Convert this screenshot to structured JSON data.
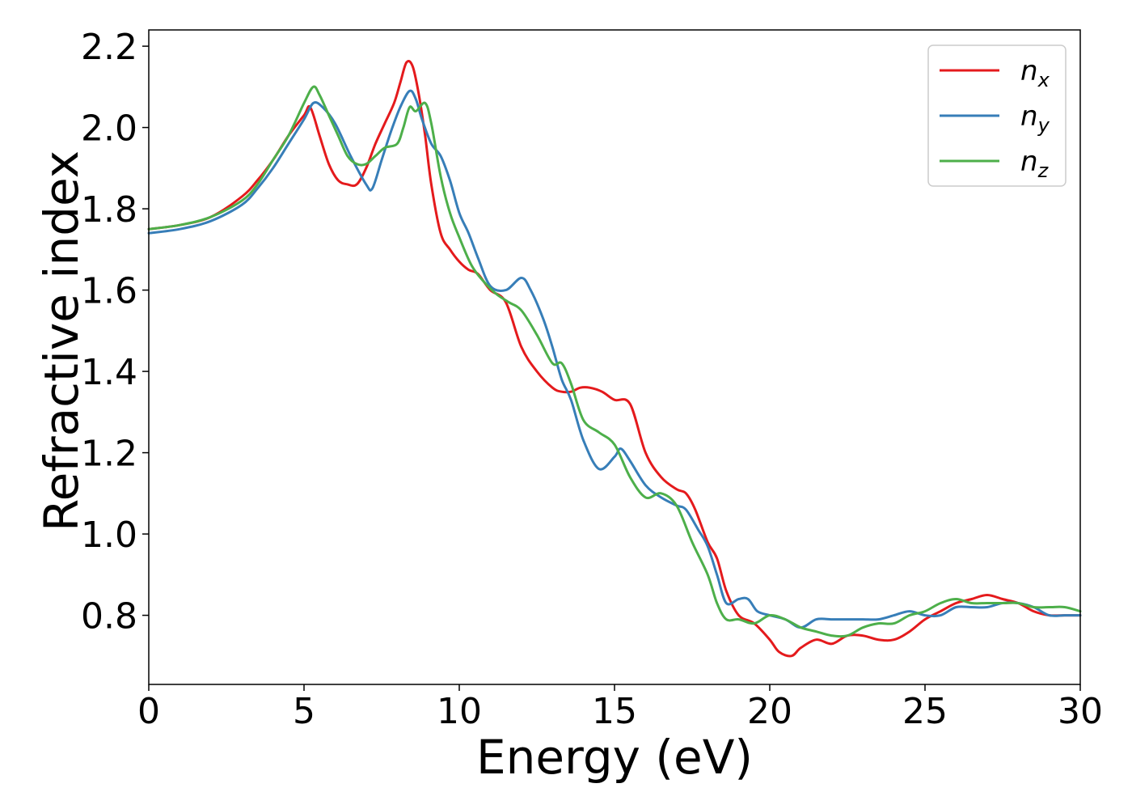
{
  "chart_data": {
    "type": "line",
    "title": "",
    "xlabel": "Energy (eV)",
    "ylabel": "Refractive index",
    "xlim": [
      0,
      30
    ],
    "ylim": [
      0.63,
      2.24
    ],
    "xticks": [
      0,
      5,
      10,
      15,
      20,
      25,
      30
    ],
    "yticks": [
      0.8,
      1.0,
      1.2,
      1.4,
      1.6,
      1.8,
      2.0,
      2.2
    ],
    "xtick_labels": [
      "0",
      "5",
      "10",
      "15",
      "20",
      "25",
      "30"
    ],
    "ytick_labels": [
      "0.8",
      "1.0",
      "1.2",
      "1.4",
      "1.6",
      "1.8",
      "2.0",
      "2.2"
    ],
    "grid": false,
    "legend_position": "top-right",
    "series": [
      {
        "name": "n",
        "sub": "x",
        "color": "#e41a1c",
        "x": [
          0,
          1,
          2,
          3,
          3.5,
          4,
          4.5,
          5,
          5.2,
          5.5,
          5.8,
          6.1,
          6.4,
          6.7,
          7,
          7.3,
          7.6,
          7.9,
          8.1,
          8.3,
          8.5,
          8.7,
          8.9,
          9.1,
          9.4,
          9.7,
          10,
          10.3,
          10.6,
          11,
          11.5,
          12,
          12.5,
          13,
          13.3,
          13.6,
          13.9,
          14.2,
          14.6,
          15,
          15.5,
          16,
          16.5,
          17,
          17.3,
          17.6,
          18,
          18.3,
          18.6,
          19,
          19.5,
          20,
          20.3,
          20.7,
          21,
          21.5,
          22,
          22.5,
          23,
          23.5,
          24,
          24.5,
          25,
          25.5,
          26,
          26.5,
          27,
          27.5,
          28,
          28.5,
          29,
          29.5,
          30
        ],
        "y": [
          1.75,
          1.76,
          1.78,
          1.83,
          1.87,
          1.92,
          1.98,
          2.03,
          2.05,
          1.98,
          1.91,
          1.87,
          1.86,
          1.86,
          1.9,
          1.96,
          2.01,
          2.06,
          2.11,
          2.16,
          2.15,
          2.08,
          1.98,
          1.86,
          1.74,
          1.7,
          1.67,
          1.65,
          1.64,
          1.6,
          1.57,
          1.46,
          1.4,
          1.36,
          1.35,
          1.35,
          1.36,
          1.36,
          1.35,
          1.33,
          1.32,
          1.2,
          1.14,
          1.11,
          1.1,
          1.06,
          0.98,
          0.94,
          0.86,
          0.8,
          0.78,
          0.74,
          0.71,
          0.7,
          0.72,
          0.74,
          0.73,
          0.75,
          0.75,
          0.74,
          0.74,
          0.76,
          0.79,
          0.81,
          0.83,
          0.84,
          0.85,
          0.84,
          0.83,
          0.81,
          0.8,
          0.8,
          0.8
        ]
      },
      {
        "name": "n",
        "sub": "y",
        "color": "#377eb8",
        "x": [
          0,
          1,
          2,
          3,
          3.5,
          4,
          4.5,
          5,
          5.3,
          5.6,
          6,
          6.5,
          7,
          7.2,
          7.5,
          7.8,
          8.1,
          8.4,
          8.6,
          8.8,
          9.1,
          9.4,
          9.7,
          10,
          10.3,
          10.6,
          11,
          11.5,
          12,
          12.3,
          12.7,
          13,
          13.3,
          13.6,
          14,
          14.5,
          15,
          15.2,
          15.5,
          16,
          16.5,
          17,
          17.3,
          17.7,
          18,
          18.3,
          18.6,
          19,
          19.3,
          19.6,
          20,
          20.5,
          21,
          21.5,
          22,
          22.5,
          23,
          23.5,
          24,
          24.5,
          25,
          25.5,
          26,
          26.5,
          27,
          27.5,
          28,
          28.5,
          29,
          29.5,
          30
        ],
        "y": [
          1.74,
          1.75,
          1.77,
          1.81,
          1.85,
          1.9,
          1.96,
          2.02,
          2.06,
          2.05,
          2.01,
          1.93,
          1.86,
          1.85,
          1.92,
          1.99,
          2.05,
          2.09,
          2.07,
          2.02,
          1.96,
          1.93,
          1.87,
          1.79,
          1.74,
          1.68,
          1.61,
          1.6,
          1.63,
          1.6,
          1.53,
          1.46,
          1.38,
          1.33,
          1.23,
          1.16,
          1.19,
          1.21,
          1.18,
          1.12,
          1.09,
          1.07,
          1.06,
          1.01,
          0.97,
          0.9,
          0.83,
          0.84,
          0.84,
          0.81,
          0.8,
          0.79,
          0.77,
          0.79,
          0.79,
          0.79,
          0.79,
          0.79,
          0.8,
          0.81,
          0.8,
          0.8,
          0.82,
          0.82,
          0.82,
          0.83,
          0.83,
          0.82,
          0.8,
          0.8,
          0.8
        ]
      },
      {
        "name": "n",
        "sub": "z",
        "color": "#4daf4a",
        "x": [
          0,
          1,
          2,
          3,
          3.5,
          4,
          4.5,
          5,
          5.3,
          5.5,
          5.8,
          6.1,
          6.4,
          6.7,
          7,
          7.3,
          7.6,
          8,
          8.2,
          8.4,
          8.6,
          8.9,
          9.1,
          9.4,
          9.7,
          10,
          10.4,
          10.8,
          11.2,
          11.6,
          12,
          12.5,
          13,
          13.3,
          13.6,
          14,
          14.5,
          15,
          15.5,
          16,
          16.5,
          17,
          17.5,
          18,
          18.3,
          18.6,
          19,
          19.5,
          20,
          20.5,
          21,
          21.5,
          22,
          22.5,
          23,
          23.5,
          24,
          24.5,
          25,
          25.5,
          26,
          26.5,
          27,
          27.5,
          28,
          28.5,
          29,
          29.5,
          30
        ],
        "y": [
          1.75,
          1.76,
          1.78,
          1.82,
          1.86,
          1.92,
          1.98,
          2.06,
          2.1,
          2.08,
          2.03,
          1.98,
          1.93,
          1.91,
          1.91,
          1.93,
          1.95,
          1.96,
          2.0,
          2.05,
          2.04,
          2.06,
          2.01,
          1.88,
          1.79,
          1.73,
          1.66,
          1.62,
          1.59,
          1.57,
          1.55,
          1.49,
          1.42,
          1.42,
          1.37,
          1.28,
          1.25,
          1.22,
          1.14,
          1.09,
          1.1,
          1.07,
          0.98,
          0.9,
          0.83,
          0.79,
          0.79,
          0.78,
          0.8,
          0.79,
          0.77,
          0.76,
          0.75,
          0.75,
          0.77,
          0.78,
          0.78,
          0.8,
          0.81,
          0.83,
          0.84,
          0.83,
          0.83,
          0.83,
          0.83,
          0.82,
          0.82,
          0.82,
          0.81
        ]
      }
    ]
  }
}
